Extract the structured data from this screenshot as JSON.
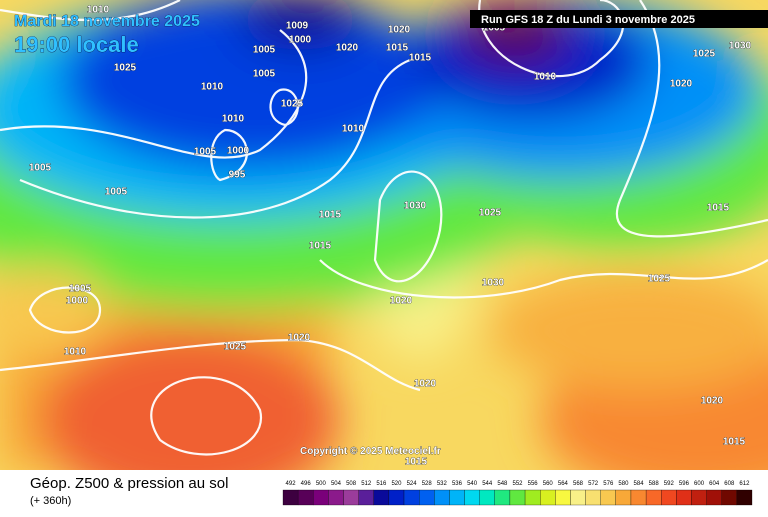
{
  "header": {
    "date": "Mardi 18 novembre 2025",
    "time": "19:00 locale",
    "run": "Run GFS 18 Z du Lundi 3 novembre 2025"
  },
  "isobar_labels": [
    "1010",
    "1005",
    "1000",
    "1009",
    "1020",
    "1015",
    "1020",
    "1015",
    "1005",
    "1010",
    "1025",
    "1030",
    "1020",
    "1025",
    "1010",
    "1005",
    "1025",
    "1010",
    "1010",
    "1005",
    "1000",
    "995",
    "1005",
    "1005",
    "1030",
    "1025",
    "1015",
    "1015",
    "1015",
    "1005",
    "1000",
    "1020",
    "1030",
    "1025",
    "1010",
    "1025",
    "1020",
    "1020",
    "1020",
    "1015",
    "1015"
  ],
  "copyright": "Copyright © 2025 Meteociel.fr",
  "footer": {
    "title": "Géop. Z500 & pression au sol",
    "lead": "(+ 360h)"
  },
  "legend": {
    "values": [
      492,
      496,
      500,
      504,
      508,
      512,
      516,
      520,
      524,
      528,
      532,
      536,
      540,
      544,
      548,
      552,
      556,
      560,
      564,
      568,
      572,
      576,
      580,
      584,
      588,
      592,
      596,
      600,
      604,
      608,
      612
    ],
    "colors": [
      "#3d0040",
      "#580058",
      "#7a007a",
      "#8b1a8b",
      "#9b3c9b",
      "#5a1f9a",
      "#0a0a9a",
      "#0020c8",
      "#0040e0",
      "#0060f0",
      "#0090f8",
      "#00b4f8",
      "#00d8f0",
      "#00e8c0",
      "#20e880",
      "#60e840",
      "#a0ec20",
      "#d8f020",
      "#f8f840",
      "#f8f088",
      "#f8e070",
      "#f8c850",
      "#f8a838",
      "#f88830",
      "#f86828",
      "#f04820",
      "#e03018",
      "#c02010",
      "#a01008",
      "#700800",
      "#300000"
    ]
  }
}
